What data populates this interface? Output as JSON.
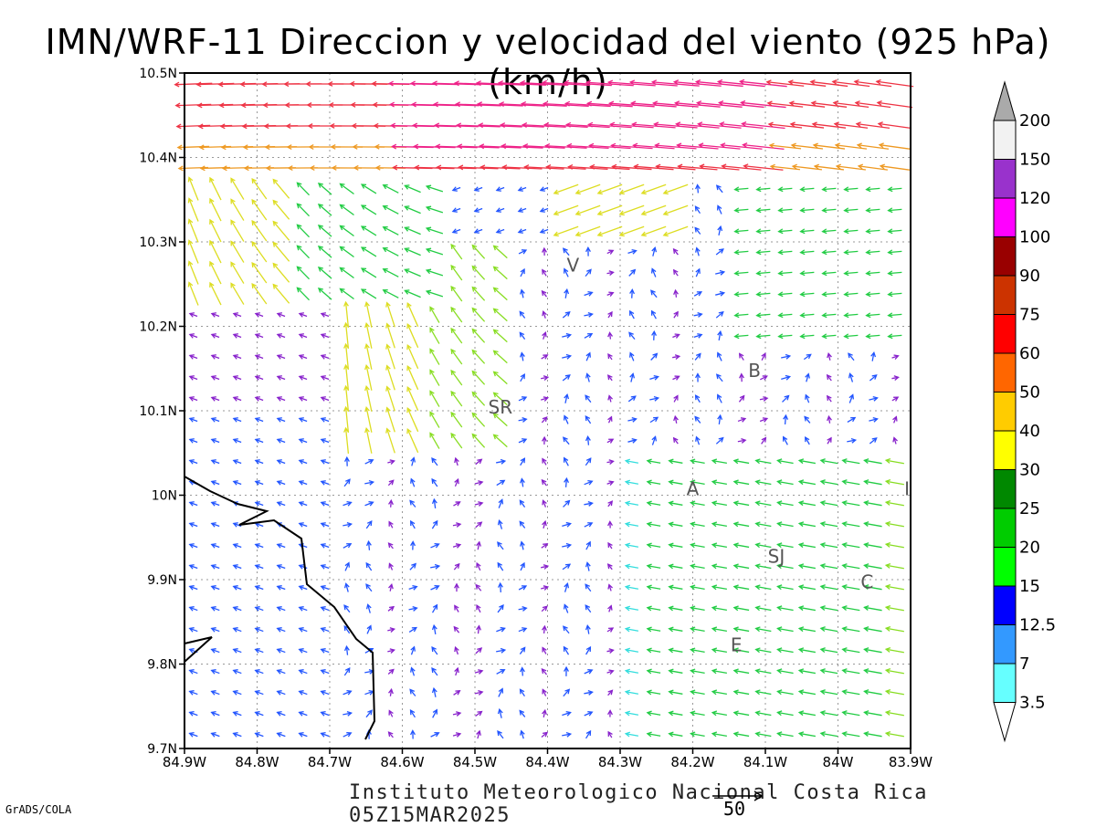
{
  "title": "IMN/WRF-11 Direccion y velocidad del viento (925 hPa)(km/h)",
  "footer": "Instituto Meteorologico Nacional Costa Rica 05Z15MAR2025",
  "credit": "GrADS/COLA",
  "reference_vector": {
    "label": "50"
  },
  "map": {
    "lon_ticks": [
      "84.9W",
      "84.8W",
      "84.7W",
      "84.6W",
      "84.5W",
      "84.4W",
      "84.3W",
      "84.2W",
      "84.1W",
      "84W",
      "83.9W"
    ],
    "lat_ticks": [
      "10.5N",
      "10.4N",
      "10.3N",
      "10.2N",
      "10.1N",
      "10N",
      "9.9N",
      "9.8N",
      "9.7N"
    ],
    "lon_range": [
      -84.9,
      -83.9
    ],
    "lat_range": [
      9.7,
      10.5
    ],
    "grid": "dotted",
    "city_labels": [
      {
        "text": "V",
        "lon": -84.365,
        "lat": 10.265
      },
      {
        "text": "B",
        "lon": -84.115,
        "lat": 10.14
      },
      {
        "text": "SR",
        "lon": -84.465,
        "lat": 10.097
      },
      {
        "text": "A",
        "lon": -84.2,
        "lat": 10.0
      },
      {
        "text": "SJ",
        "lon": -84.085,
        "lat": 9.92
      },
      {
        "text": "C",
        "lon": -83.96,
        "lat": 9.89
      },
      {
        "text": "E",
        "lon": -84.14,
        "lat": 9.815
      },
      {
        "text": "I",
        "lon": -83.905,
        "lat": 10.0
      }
    ]
  },
  "colorbar": {
    "labels": [
      "200",
      "150",
      "120",
      "100",
      "90",
      "75",
      "60",
      "50",
      "40",
      "30",
      "25",
      "20",
      "15",
      "12.5",
      "7",
      "3.5"
    ],
    "colors": [
      "#f2f2f2",
      "#9932cc",
      "#ff00ff",
      "#990000",
      "#cc3300",
      "#ff0000",
      "#ff6600",
      "#ffcc00",
      "#ffff00",
      "#008800",
      "#00cc00",
      "#00ff00",
      "#0000ff",
      "#3399ff",
      "#66ffff"
    ],
    "over_color": "#aaaaaa"
  },
  "speed_colors": {
    "cyan": "#33dddd",
    "blue": "#2255ff",
    "purple": "#8822cc",
    "green": "#22cc44",
    "lime": "#88dd22",
    "yellow": "#dddd22",
    "orange": "#ee9922",
    "red": "#ee3344",
    "magenta": "#ee2288"
  }
}
